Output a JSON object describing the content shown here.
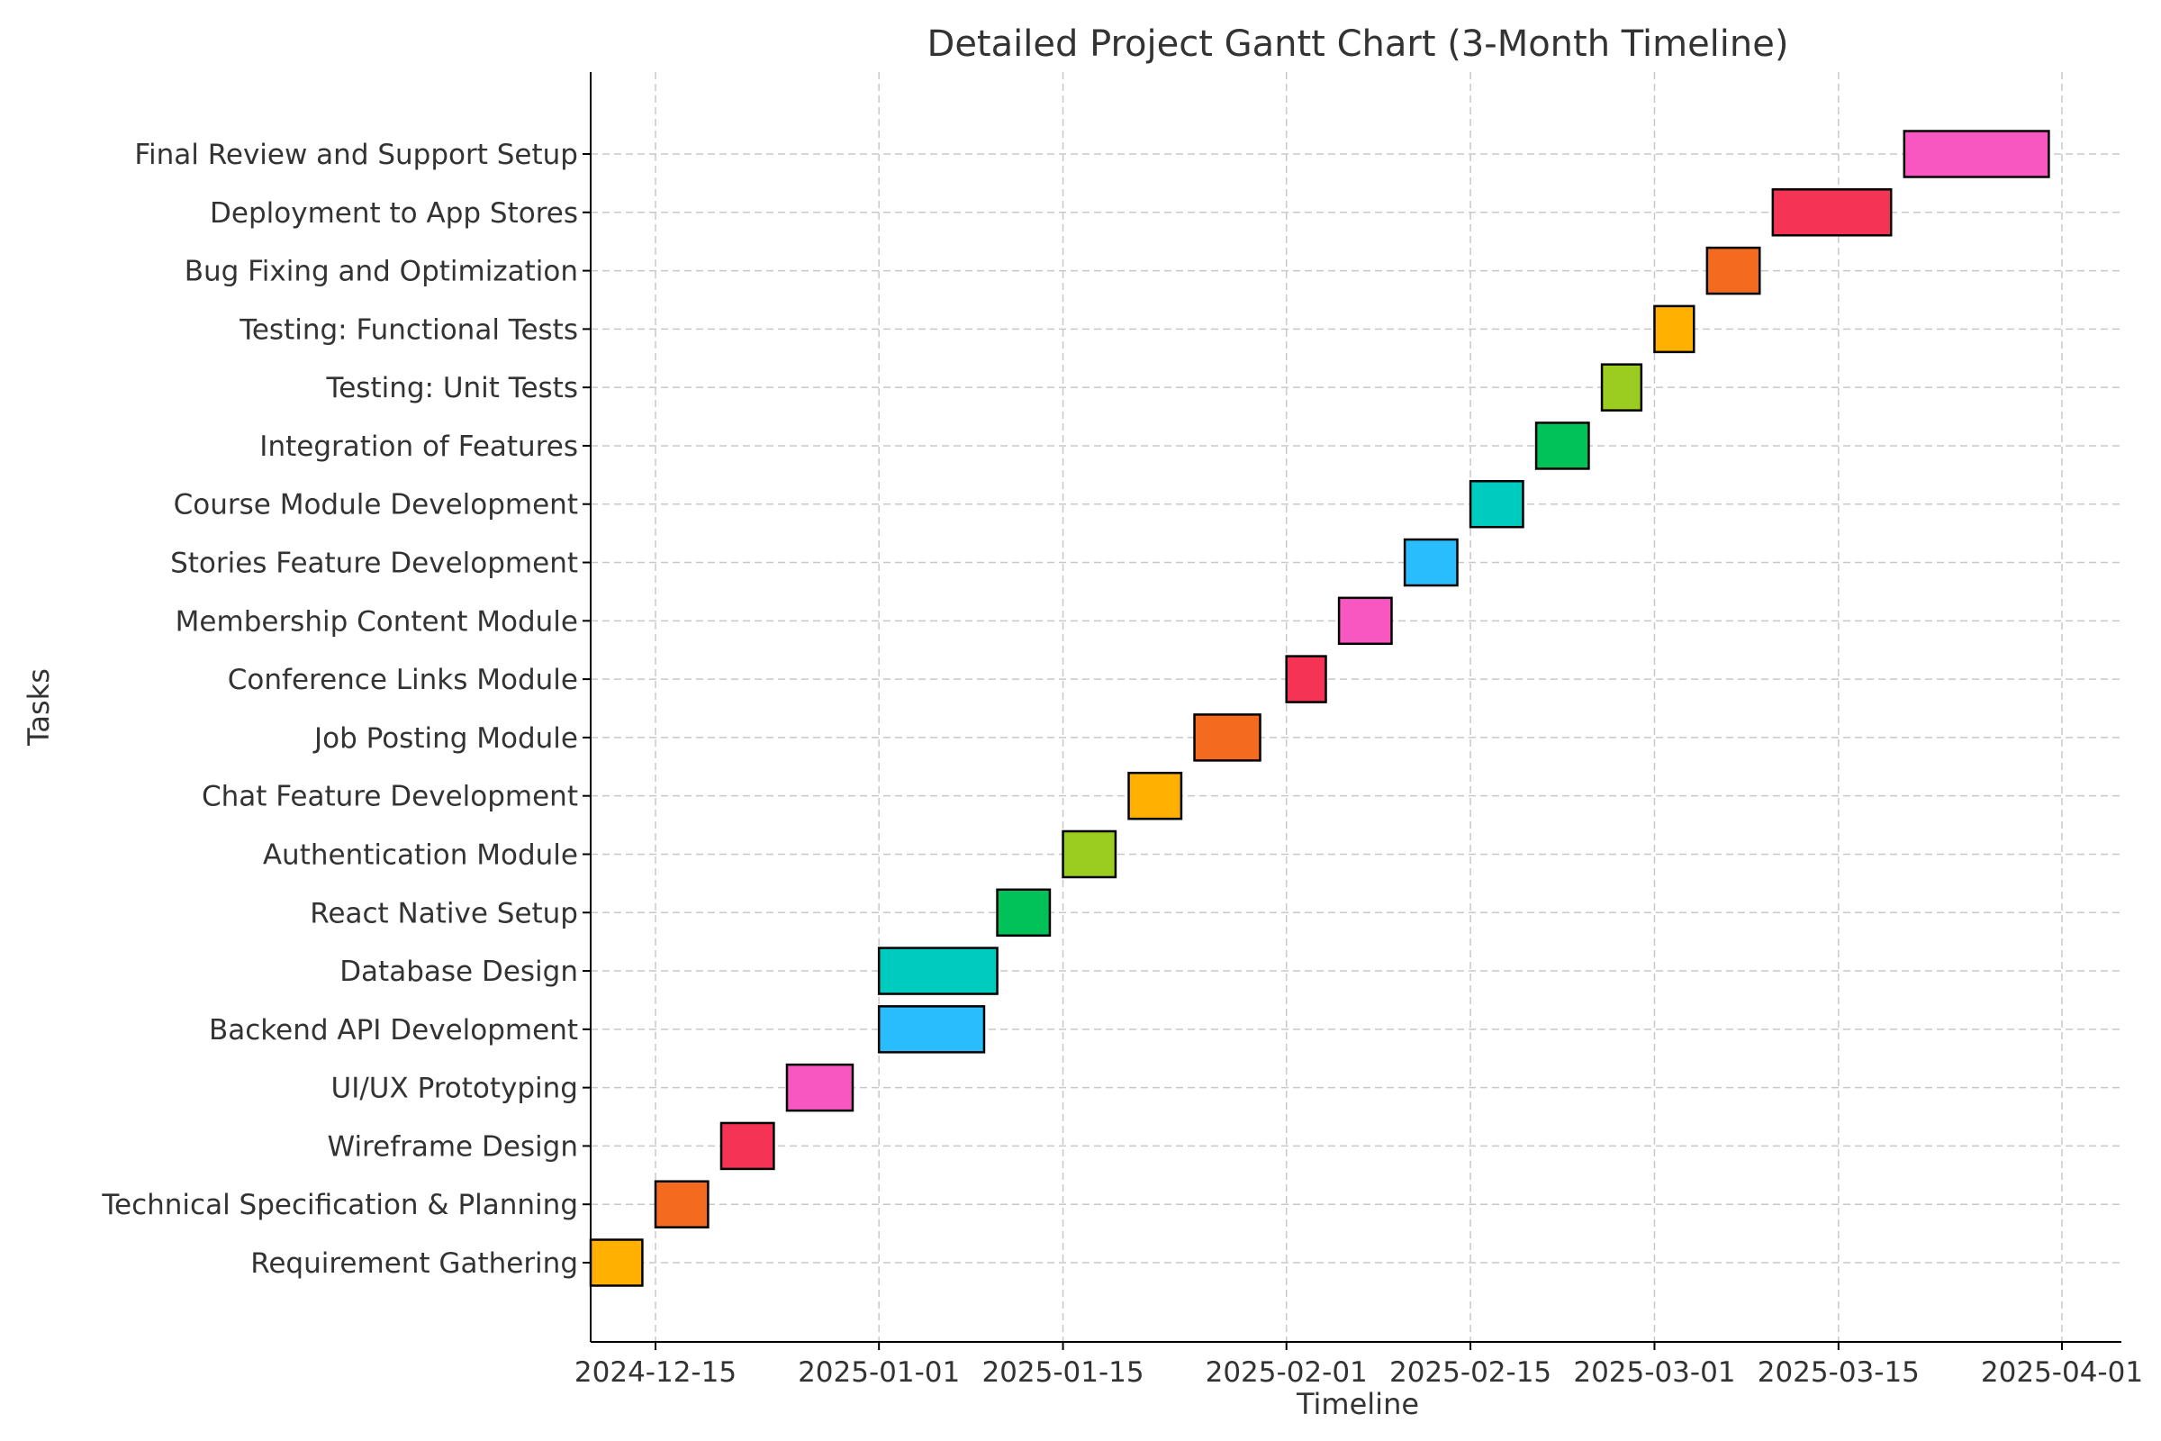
{
  "chart_data": {
    "type": "gantt",
    "title": "Detailed Project Gantt Chart (3-Month Timeline)",
    "xlabel": "Timeline",
    "ylabel": "Tasks",
    "grid": true,
    "x_range": [
      "2024-12-12",
      "2025-04-05"
    ],
    "x_ticks": [
      "2024-12-15",
      "2025-01-01",
      "2025-01-15",
      "2025-02-01",
      "2025-02-15",
      "2025-03-01",
      "2025-03-15",
      "2025-04-01"
    ],
    "tasks": [
      {
        "name": "Requirement Gathering",
        "start": "2024-12-10",
        "end": "2024-12-14",
        "color": "#FFB000"
      },
      {
        "name": "Technical Specification & Planning",
        "start": "2024-12-15",
        "end": "2024-12-19",
        "color": "#F46A1F"
      },
      {
        "name": "Wireframe Design",
        "start": "2024-12-20",
        "end": "2024-12-24",
        "color": "#F43355"
      },
      {
        "name": "UI/UX Prototyping",
        "start": "2024-12-25",
        "end": "2024-12-30",
        "color": "#F857C1"
      },
      {
        "name": "Backend API Development",
        "start": "2025-01-01",
        "end": "2025-01-09",
        "color": "#29BDFD"
      },
      {
        "name": "Database Design",
        "start": "2025-01-01",
        "end": "2025-01-10",
        "color": "#00CBBF"
      },
      {
        "name": "React Native Setup",
        "start": "2025-01-10",
        "end": "2025-01-14",
        "color": "#01C159"
      },
      {
        "name": "Authentication Module",
        "start": "2025-01-15",
        "end": "2025-01-19",
        "color": "#9ACD1F"
      },
      {
        "name": "Chat Feature Development",
        "start": "2025-01-20",
        "end": "2025-01-24",
        "color": "#FFB000"
      },
      {
        "name": "Job Posting Module",
        "start": "2025-01-25",
        "end": "2025-01-30",
        "color": "#F46A1F"
      },
      {
        "name": "Conference Links Module",
        "start": "2025-02-01",
        "end": "2025-02-04",
        "color": "#F43355"
      },
      {
        "name": "Membership Content Module",
        "start": "2025-02-05",
        "end": "2025-02-09",
        "color": "#F857C1"
      },
      {
        "name": "Stories Feature Development",
        "start": "2025-02-10",
        "end": "2025-02-14",
        "color": "#29BDFD"
      },
      {
        "name": "Course Module Development",
        "start": "2025-02-15",
        "end": "2025-02-19",
        "color": "#00CBBF"
      },
      {
        "name": "Integration of Features",
        "start": "2025-02-20",
        "end": "2025-02-24",
        "color": "#01C159"
      },
      {
        "name": "Testing: Unit Tests",
        "start": "2025-02-25",
        "end": "2025-02-28",
        "color": "#9ACD1F"
      },
      {
        "name": "Testing: Functional Tests",
        "start": "2025-03-01",
        "end": "2025-03-04",
        "color": "#FFB000"
      },
      {
        "name": "Bug Fixing and Optimization",
        "start": "2025-03-05",
        "end": "2025-03-09",
        "color": "#F46A1F"
      },
      {
        "name": "Deployment to App Stores",
        "start": "2025-03-10",
        "end": "2025-03-19",
        "color": "#F43355"
      },
      {
        "name": "Final Review and Support Setup",
        "start": "2025-03-20",
        "end": "2025-03-31",
        "color": "#F857C1"
      }
    ]
  }
}
